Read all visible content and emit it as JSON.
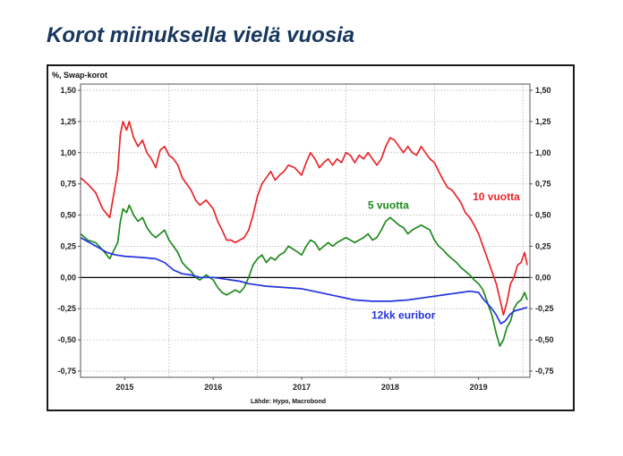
{
  "slide": {
    "title": "Korot miinuksella vielä vuosia"
  },
  "chart_data": {
    "type": "line",
    "ylabel": "%, Swap-korot",
    "source": "Lähde: Hypo, Macrobond",
    "ylim": [
      -0.8,
      1.55
    ],
    "xlim": [
      2014.5,
      2019.58
    ],
    "yticks": [
      {
        "value": 1.5,
        "label": "1,50"
      },
      {
        "value": 1.25,
        "label": "1,25"
      },
      {
        "value": 1.0,
        "label": "1,00"
      },
      {
        "value": 0.75,
        "label": "0,75"
      },
      {
        "value": 0.5,
        "label": "0,50"
      },
      {
        "value": 0.25,
        "label": "0,25"
      },
      {
        "value": 0.0,
        "label": "0,00"
      },
      {
        "value": -0.25,
        "label": "-0,25"
      },
      {
        "value": -0.5,
        "label": "-0,50"
      },
      {
        "value": -0.75,
        "label": "-0,75"
      }
    ],
    "xticks": [
      {
        "value": 2015.0,
        "label": "2015"
      },
      {
        "value": 2016.0,
        "label": "2016"
      },
      {
        "value": 2017.0,
        "label": "2017"
      },
      {
        "value": 2018.0,
        "label": "2018"
      },
      {
        "value": 2019.0,
        "label": "2019"
      }
    ],
    "grid": true,
    "zero_line": true,
    "series": [
      {
        "name": "10 vuotta",
        "color": "#e8262a",
        "points": [
          [
            2014.5,
            0.8
          ],
          [
            2014.58,
            0.75
          ],
          [
            2014.67,
            0.68
          ],
          [
            2014.75,
            0.55
          ],
          [
            2014.83,
            0.48
          ],
          [
            2014.92,
            0.85
          ],
          [
            2014.95,
            1.15
          ],
          [
            2014.98,
            1.25
          ],
          [
            2015.02,
            1.18
          ],
          [
            2015.05,
            1.25
          ],
          [
            2015.1,
            1.12
          ],
          [
            2015.15,
            1.05
          ],
          [
            2015.2,
            1.1
          ],
          [
            2015.25,
            1.0
          ],
          [
            2015.3,
            0.95
          ],
          [
            2015.35,
            0.88
          ],
          [
            2015.4,
            1.02
          ],
          [
            2015.45,
            1.05
          ],
          [
            2015.5,
            0.98
          ],
          [
            2015.55,
            0.95
          ],
          [
            2015.6,
            0.9
          ],
          [
            2015.65,
            0.8
          ],
          [
            2015.7,
            0.75
          ],
          [
            2015.75,
            0.7
          ],
          [
            2015.8,
            0.62
          ],
          [
            2015.85,
            0.58
          ],
          [
            2015.92,
            0.62
          ],
          [
            2016.0,
            0.55
          ],
          [
            2016.05,
            0.45
          ],
          [
            2016.1,
            0.38
          ],
          [
            2016.15,
            0.3
          ],
          [
            2016.2,
            0.3
          ],
          [
            2016.25,
            0.28
          ],
          [
            2016.3,
            0.3
          ],
          [
            2016.35,
            0.32
          ],
          [
            2016.4,
            0.38
          ],
          [
            2016.45,
            0.5
          ],
          [
            2016.5,
            0.65
          ],
          [
            2016.55,
            0.75
          ],
          [
            2016.6,
            0.8
          ],
          [
            2016.65,
            0.85
          ],
          [
            2016.7,
            0.78
          ],
          [
            2016.75,
            0.82
          ],
          [
            2016.8,
            0.85
          ],
          [
            2016.85,
            0.9
          ],
          [
            2016.92,
            0.88
          ],
          [
            2017.0,
            0.82
          ],
          [
            2017.05,
            0.92
          ],
          [
            2017.1,
            1.0
          ],
          [
            2017.15,
            0.95
          ],
          [
            2017.2,
            0.88
          ],
          [
            2017.25,
            0.92
          ],
          [
            2017.3,
            0.95
          ],
          [
            2017.35,
            0.9
          ],
          [
            2017.4,
            0.95
          ],
          [
            2017.45,
            0.92
          ],
          [
            2017.5,
            1.0
          ],
          [
            2017.55,
            0.98
          ],
          [
            2017.6,
            0.92
          ],
          [
            2017.65,
            0.98
          ],
          [
            2017.7,
            0.95
          ],
          [
            2017.75,
            1.0
          ],
          [
            2017.8,
            0.95
          ],
          [
            2017.85,
            0.9
          ],
          [
            2017.9,
            0.95
          ],
          [
            2017.95,
            1.05
          ],
          [
            2018.0,
            1.12
          ],
          [
            2018.05,
            1.1
          ],
          [
            2018.1,
            1.05
          ],
          [
            2018.15,
            1.0
          ],
          [
            2018.2,
            1.05
          ],
          [
            2018.25,
            1.0
          ],
          [
            2018.3,
            0.98
          ],
          [
            2018.35,
            1.05
          ],
          [
            2018.4,
            1.0
          ],
          [
            2018.45,
            0.95
          ],
          [
            2018.5,
            0.92
          ],
          [
            2018.55,
            0.85
          ],
          [
            2018.6,
            0.78
          ],
          [
            2018.65,
            0.72
          ],
          [
            2018.7,
            0.7
          ],
          [
            2018.75,
            0.65
          ],
          [
            2018.8,
            0.6
          ],
          [
            2018.85,
            0.52
          ],
          [
            2018.9,
            0.48
          ],
          [
            2018.95,
            0.42
          ],
          [
            2019.0,
            0.35
          ],
          [
            2019.05,
            0.25
          ],
          [
            2019.1,
            0.15
          ],
          [
            2019.15,
            0.05
          ],
          [
            2019.2,
            -0.05
          ],
          [
            2019.25,
            -0.2
          ],
          [
            2019.28,
            -0.3
          ],
          [
            2019.32,
            -0.2
          ],
          [
            2019.36,
            -0.05
          ],
          [
            2019.4,
            0.0
          ],
          [
            2019.44,
            0.1
          ],
          [
            2019.48,
            0.12
          ],
          [
            2019.52,
            0.2
          ],
          [
            2019.55,
            0.1
          ]
        ]
      },
      {
        "name": "5 vuotta",
        "color": "#1f8a1f",
        "points": [
          [
            2014.5,
            0.35
          ],
          [
            2014.58,
            0.3
          ],
          [
            2014.67,
            0.28
          ],
          [
            2014.75,
            0.22
          ],
          [
            2014.83,
            0.15
          ],
          [
            2014.92,
            0.28
          ],
          [
            2014.95,
            0.45
          ],
          [
            2014.98,
            0.55
          ],
          [
            2015.02,
            0.52
          ],
          [
            2015.05,
            0.58
          ],
          [
            2015.1,
            0.5
          ],
          [
            2015.15,
            0.45
          ],
          [
            2015.2,
            0.48
          ],
          [
            2015.25,
            0.4
          ],
          [
            2015.3,
            0.35
          ],
          [
            2015.35,
            0.32
          ],
          [
            2015.4,
            0.35
          ],
          [
            2015.45,
            0.38
          ],
          [
            2015.5,
            0.3
          ],
          [
            2015.55,
            0.25
          ],
          [
            2015.6,
            0.2
          ],
          [
            2015.65,
            0.12
          ],
          [
            2015.7,
            0.08
          ],
          [
            2015.75,
            0.05
          ],
          [
            2015.8,
            0.0
          ],
          [
            2015.85,
            -0.02
          ],
          [
            2015.92,
            0.02
          ],
          [
            2016.0,
            -0.02
          ],
          [
            2016.05,
            -0.08
          ],
          [
            2016.1,
            -0.12
          ],
          [
            2016.15,
            -0.14
          ],
          [
            2016.2,
            -0.12
          ],
          [
            2016.25,
            -0.1
          ],
          [
            2016.3,
            -0.12
          ],
          [
            2016.35,
            -0.08
          ],
          [
            2016.4,
            0.0
          ],
          [
            2016.45,
            0.1
          ],
          [
            2016.5,
            0.15
          ],
          [
            2016.55,
            0.18
          ],
          [
            2016.6,
            0.12
          ],
          [
            2016.65,
            0.16
          ],
          [
            2016.7,
            0.14
          ],
          [
            2016.75,
            0.18
          ],
          [
            2016.8,
            0.2
          ],
          [
            2016.85,
            0.25
          ],
          [
            2016.92,
            0.22
          ],
          [
            2017.0,
            0.18
          ],
          [
            2017.05,
            0.25
          ],
          [
            2017.1,
            0.3
          ],
          [
            2017.15,
            0.28
          ],
          [
            2017.2,
            0.22
          ],
          [
            2017.25,
            0.25
          ],
          [
            2017.3,
            0.28
          ],
          [
            2017.35,
            0.25
          ],
          [
            2017.4,
            0.28
          ],
          [
            2017.45,
            0.3
          ],
          [
            2017.5,
            0.32
          ],
          [
            2017.55,
            0.3
          ],
          [
            2017.6,
            0.28
          ],
          [
            2017.65,
            0.3
          ],
          [
            2017.7,
            0.32
          ],
          [
            2017.75,
            0.35
          ],
          [
            2017.8,
            0.3
          ],
          [
            2017.85,
            0.32
          ],
          [
            2017.9,
            0.38
          ],
          [
            2017.95,
            0.45
          ],
          [
            2018.0,
            0.48
          ],
          [
            2018.05,
            0.45
          ],
          [
            2018.1,
            0.42
          ],
          [
            2018.15,
            0.4
          ],
          [
            2018.2,
            0.35
          ],
          [
            2018.25,
            0.38
          ],
          [
            2018.3,
            0.4
          ],
          [
            2018.35,
            0.42
          ],
          [
            2018.4,
            0.4
          ],
          [
            2018.45,
            0.38
          ],
          [
            2018.5,
            0.3
          ],
          [
            2018.55,
            0.25
          ],
          [
            2018.6,
            0.22
          ],
          [
            2018.65,
            0.18
          ],
          [
            2018.7,
            0.15
          ],
          [
            2018.75,
            0.12
          ],
          [
            2018.8,
            0.08
          ],
          [
            2018.85,
            0.05
          ],
          [
            2018.9,
            0.02
          ],
          [
            2018.95,
            -0.02
          ],
          [
            2019.0,
            -0.05
          ],
          [
            2019.05,
            -0.1
          ],
          [
            2019.1,
            -0.2
          ],
          [
            2019.15,
            -0.3
          ],
          [
            2019.2,
            -0.45
          ],
          [
            2019.24,
            -0.55
          ],
          [
            2019.28,
            -0.5
          ],
          [
            2019.32,
            -0.4
          ],
          [
            2019.36,
            -0.35
          ],
          [
            2019.4,
            -0.25
          ],
          [
            2019.44,
            -0.2
          ],
          [
            2019.48,
            -0.18
          ],
          [
            2019.52,
            -0.12
          ],
          [
            2019.55,
            -0.18
          ]
        ]
      },
      {
        "name": "12kk euribor",
        "color": "#2233dd",
        "points": [
          [
            2014.5,
            0.32
          ],
          [
            2014.6,
            0.28
          ],
          [
            2014.7,
            0.24
          ],
          [
            2014.8,
            0.2
          ],
          [
            2014.9,
            0.18
          ],
          [
            2015.0,
            0.17
          ],
          [
            2015.2,
            0.16
          ],
          [
            2015.35,
            0.15
          ],
          [
            2015.45,
            0.12
          ],
          [
            2015.55,
            0.06
          ],
          [
            2015.65,
            0.03
          ],
          [
            2015.75,
            0.02
          ],
          [
            2015.85,
            0.0
          ],
          [
            2016.0,
            0.0
          ],
          [
            2016.1,
            -0.01
          ],
          [
            2016.2,
            -0.02
          ],
          [
            2016.3,
            -0.03
          ],
          [
            2016.4,
            -0.05
          ],
          [
            2016.5,
            -0.06
          ],
          [
            2016.6,
            -0.07
          ],
          [
            2016.8,
            -0.08
          ],
          [
            2017.0,
            -0.09
          ],
          [
            2017.2,
            -0.12
          ],
          [
            2017.4,
            -0.15
          ],
          [
            2017.6,
            -0.18
          ],
          [
            2017.8,
            -0.19
          ],
          [
            2018.0,
            -0.19
          ],
          [
            2018.2,
            -0.18
          ],
          [
            2018.4,
            -0.16
          ],
          [
            2018.6,
            -0.14
          ],
          [
            2018.8,
            -0.12
          ],
          [
            2018.9,
            -0.11
          ],
          [
            2019.0,
            -0.12
          ],
          [
            2019.05,
            -0.17
          ],
          [
            2019.1,
            -0.21
          ],
          [
            2019.15,
            -0.25
          ],
          [
            2019.2,
            -0.3
          ],
          [
            2019.25,
            -0.37
          ],
          [
            2019.3,
            -0.35
          ],
          [
            2019.35,
            -0.3
          ],
          [
            2019.4,
            -0.27
          ],
          [
            2019.45,
            -0.26
          ],
          [
            2019.5,
            -0.25
          ],
          [
            2019.55,
            -0.24
          ]
        ]
      }
    ]
  }
}
